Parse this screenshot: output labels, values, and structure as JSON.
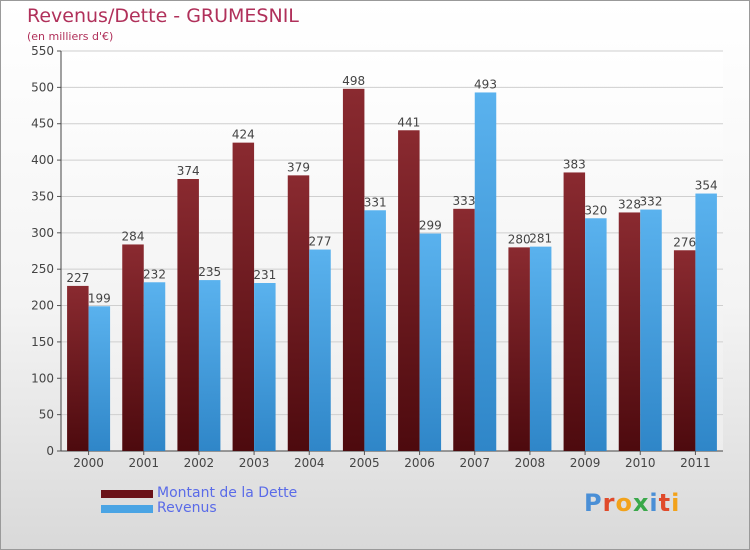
{
  "header": {
    "title": "Revenus/Dette - GRUMESNIL",
    "subtitle": "(en milliers d'€)"
  },
  "legend": {
    "debt_label": "Montant de la Dette",
    "revenue_label": "Revenus"
  },
  "logo": {
    "text": "Proxiti",
    "letter_colors": [
      "#4a8fd6",
      "#e04a2a",
      "#f2a21a",
      "#3aa84a",
      "#4a8fd6",
      "#e04a2a",
      "#f2a21a"
    ]
  },
  "colors": {
    "debt": "#7a1e24",
    "revenue": "#4aa4e4",
    "title": "#b0305a",
    "legend_text": "#5a6be8"
  },
  "chart_data": {
    "type": "bar",
    "categories": [
      "2000",
      "2001",
      "2002",
      "2003",
      "2004",
      "2005",
      "2006",
      "2007",
      "2008",
      "2009",
      "2010",
      "2011"
    ],
    "series": [
      {
        "name": "Montant de la Dette",
        "values": [
          227,
          284,
          374,
          424,
          379,
          498,
          441,
          333,
          280,
          383,
          328,
          276
        ]
      },
      {
        "name": "Revenus",
        "values": [
          199,
          232,
          235,
          231,
          277,
          331,
          299,
          493,
          281,
          320,
          332,
          354
        ]
      }
    ],
    "title": "Revenus/Dette - GRUMESNIL",
    "ylabel": "(en milliers d'€)",
    "ylim": [
      0,
      550
    ],
    "yticks": [
      0,
      50,
      100,
      150,
      200,
      250,
      300,
      350,
      400,
      450,
      500,
      550
    ],
    "grid": true,
    "legend_position": "bottom-left"
  }
}
